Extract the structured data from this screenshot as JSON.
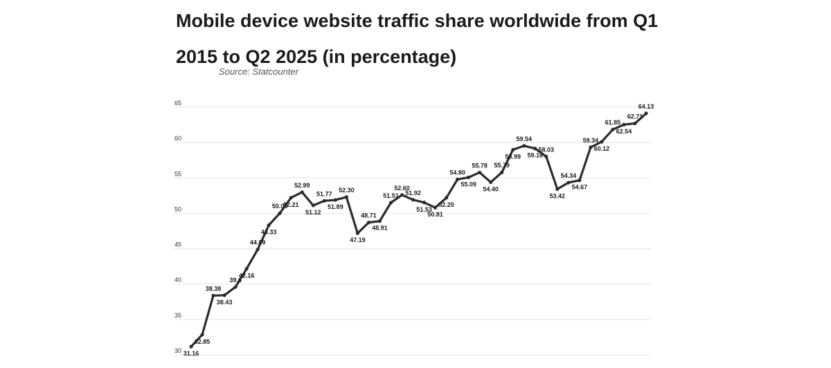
{
  "chart_data": {
    "type": "line",
    "title": "Mobile device website traffic share worldwide from Q1 2015 to Q2 2025 (in percentage)",
    "subtitle": "Source: Statcounter",
    "xlabel": "",
    "ylabel": "",
    "ylim": [
      30,
      65
    ],
    "yticks": [
      30,
      35,
      40,
      45,
      50,
      55,
      60,
      65
    ],
    "grid": true,
    "series": [
      {
        "values": [
          31.16,
          32.85,
          38.38,
          38.43,
          39.6,
          42.16,
          44.89,
          48.33,
          50.03,
          52.21,
          52.99,
          51.12,
          51.77,
          51.89,
          52.3,
          47.19,
          48.71,
          48.91,
          51.51,
          52.6,
          51.92,
          51.53,
          50.81,
          52.2,
          54.8,
          55.09,
          55.78,
          54.4,
          55.79,
          58.99,
          59.54,
          59.16,
          58.03,
          53.42,
          54.34,
          54.67,
          59.34,
          60.12,
          61.85,
          62.54,
          62.71,
          64.13
        ],
        "labels": [
          "31.16",
          "32.85",
          "38.38",
          "38.43",
          "39.6",
          "42.16",
          "44.89",
          "48.33",
          "50.03",
          "52.21",
          "52.99",
          "51.12",
          "51.77",
          "51.89",
          "52.30",
          "47.19",
          "48.71",
          "48.91",
          "51.51",
          "52.60",
          "51.92",
          "51.53",
          "50.81",
          "52.20",
          "54.80",
          "55.09",
          "55.78",
          "54.40",
          "55.79",
          "58.99",
          "59.54",
          "59.16",
          "58.03",
          "53.42",
          "54.34",
          "54.67",
          "59.34",
          "60.12",
          "61.85",
          "62.54",
          "62.71",
          "64.13"
        ]
      }
    ],
    "colors": {
      "line": "#2b2b2b",
      "grid": "#e3e3e3"
    }
  }
}
